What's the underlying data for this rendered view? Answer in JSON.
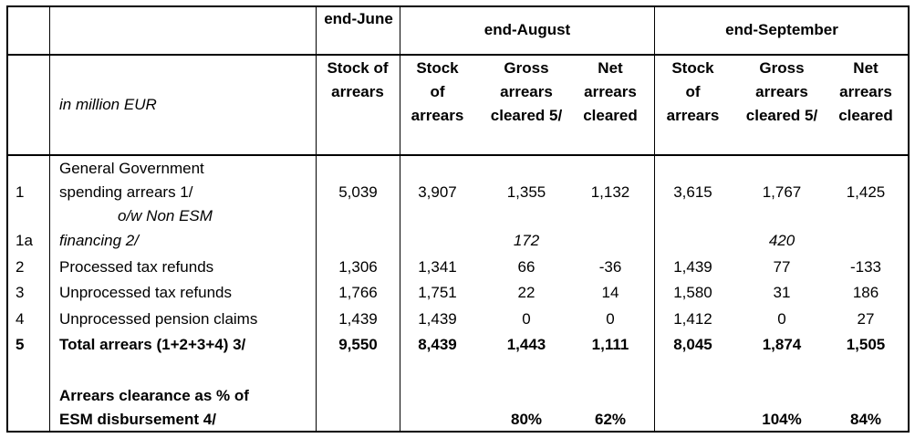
{
  "header": {
    "end_june": "end-June",
    "end_august": "end-August",
    "end_september": "end-September",
    "unit_label": "in million EUR",
    "stock_of_arrears": "Stock of arrears",
    "gross_arrears_cleared": "Gross arrears cleared 5/",
    "net_arrears_cleared": "Net arrears cleared"
  },
  "rows": [
    {
      "num": "1",
      "label_lines": [
        "General Government",
        "spending arrears 1/",
        "o/w Non ESM"
      ],
      "june": "5,039",
      "aug_stock": "3,907",
      "aug_gross": "1,355",
      "aug_net": "1,132",
      "sep_stock": "3,615",
      "sep_gross": "1,767",
      "sep_net": "1,425"
    },
    {
      "num": "1a",
      "label": "financing 2/",
      "aug_gross": "172",
      "sep_gross": "420"
    },
    {
      "num": "2",
      "label": "Processed tax refunds",
      "june": "1,306",
      "aug_stock": "1,341",
      "aug_gross": "66",
      "aug_net": "-36",
      "sep_stock": "1,439",
      "sep_gross": "77",
      "sep_net": "-133"
    },
    {
      "num": "3",
      "label": "Unprocessed tax refunds",
      "june": "1,766",
      "aug_stock": "1,751",
      "aug_gross": "22",
      "aug_net": "14",
      "sep_stock": "1,580",
      "sep_gross": "31",
      "sep_net": "186"
    },
    {
      "num": "4",
      "label": "Unprocessed pension claims",
      "june": "1,439",
      "aug_stock": "1,439",
      "aug_gross": "0",
      "aug_net": "0",
      "sep_stock": "1,412",
      "sep_gross": "0",
      "sep_net": "27"
    },
    {
      "num": "5",
      "label": "Total arrears (1+2+3+4) 3/",
      "june": "9,550",
      "aug_stock": "8,439",
      "aug_gross": "1,443",
      "aug_net": "1,111",
      "sep_stock": "8,045",
      "sep_gross": "1,874",
      "sep_net": "1,505"
    }
  ],
  "clearance": {
    "label_lines": [
      "Arrears clearance as % of",
      "ESM disbursement 4/"
    ],
    "aug_gross": "80%",
    "aug_net": "62%",
    "sep_gross": "104%",
    "sep_net": "84%"
  }
}
